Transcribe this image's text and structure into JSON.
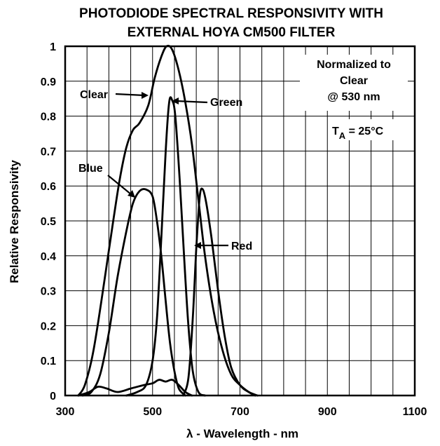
{
  "chart_data": {
    "type": "line",
    "title": [
      "PHOTODIODE SPECTRAL RESPONSIVITY WITH",
      "EXTERNAL HOYA CM500 FILTER"
    ],
    "xlabel": "λ - Wavelength - nm",
    "ylabel": "Relative Responsivity",
    "xlim": [
      300,
      1100
    ],
    "ylim": [
      0,
      1
    ],
    "x_ticks": [
      300,
      500,
      700,
      900,
      1100
    ],
    "y_ticks": [
      0,
      0.1,
      0.2,
      0.3,
      0.4,
      0.5,
      0.6,
      0.7,
      0.8,
      0.9,
      1
    ],
    "y_tick_labels": [
      "0",
      "0.1",
      "0.2",
      "0.3",
      "0.4",
      "0.5",
      "0.6",
      "0.7",
      "0.8",
      "0.9",
      "1"
    ],
    "grid": true,
    "series": [
      {
        "name": "Clear",
        "points": [
          [
            330,
            0
          ],
          [
            345,
            0.03
          ],
          [
            365,
            0.13
          ],
          [
            390,
            0.33
          ],
          [
            410,
            0.5
          ],
          [
            425,
            0.62
          ],
          [
            440,
            0.71
          ],
          [
            455,
            0.76
          ],
          [
            470,
            0.78
          ],
          [
            490,
            0.83
          ],
          [
            505,
            0.91
          ],
          [
            520,
            0.97
          ],
          [
            532,
            1.0
          ],
          [
            545,
            0.99
          ],
          [
            560,
            0.93
          ],
          [
            575,
            0.84
          ],
          [
            590,
            0.72
          ],
          [
            605,
            0.56
          ],
          [
            620,
            0.4
          ],
          [
            640,
            0.24
          ],
          [
            660,
            0.13
          ],
          [
            680,
            0.06
          ],
          [
            700,
            0.03
          ],
          [
            720,
            0.01
          ],
          [
            735,
            0
          ]
        ]
      },
      {
        "name": "Blue",
        "points": [
          [
            340,
            0
          ],
          [
            360,
            0.01
          ],
          [
            380,
            0.06
          ],
          [
            400,
            0.18
          ],
          [
            420,
            0.34
          ],
          [
            440,
            0.47
          ],
          [
            455,
            0.55
          ],
          [
            470,
            0.585
          ],
          [
            485,
            0.59
          ],
          [
            500,
            0.57
          ],
          [
            510,
            0.5
          ],
          [
            520,
            0.4
          ],
          [
            530,
            0.27
          ],
          [
            540,
            0.15
          ],
          [
            550,
            0.07
          ],
          [
            560,
            0.02
          ],
          [
            575,
            0
          ]
        ]
      },
      {
        "name": "Green",
        "points": [
          [
            440,
            0
          ],
          [
            465,
            0.01
          ],
          [
            485,
            0.03
          ],
          [
            500,
            0.1
          ],
          [
            510,
            0.22
          ],
          [
            520,
            0.45
          ],
          [
            530,
            0.7
          ],
          [
            538,
            0.84
          ],
          [
            545,
            0.845
          ],
          [
            552,
            0.8
          ],
          [
            562,
            0.62
          ],
          [
            572,
            0.4
          ],
          [
            582,
            0.2
          ],
          [
            592,
            0.07
          ],
          [
            605,
            0.01
          ],
          [
            620,
            0
          ]
        ]
      },
      {
        "name": "Red",
        "points": [
          [
            570,
            0
          ],
          [
            582,
            0.05
          ],
          [
            592,
            0.22
          ],
          [
            600,
            0.42
          ],
          [
            608,
            0.57
          ],
          [
            615,
            0.59
          ],
          [
            623,
            0.55
          ],
          [
            635,
            0.45
          ],
          [
            650,
            0.3
          ],
          [
            665,
            0.17
          ],
          [
            680,
            0.08
          ],
          [
            700,
            0.03
          ],
          [
            720,
            0.01
          ],
          [
            740,
            0
          ]
        ]
      },
      {
        "name": "",
        "points": [
          [
            330,
            0
          ],
          [
            355,
            0.01
          ],
          [
            375,
            0.025
          ],
          [
            395,
            0.02
          ],
          [
            420,
            0.01
          ],
          [
            450,
            0.02
          ],
          [
            480,
            0.03
          ],
          [
            500,
            0.035
          ],
          [
            515,
            0.045
          ],
          [
            530,
            0.04
          ],
          [
            545,
            0.045
          ],
          [
            560,
            0.03
          ],
          [
            575,
            0.01
          ],
          [
            590,
            0
          ]
        ]
      }
    ],
    "annotations": {
      "clear_label": "Clear",
      "green_label": "Green",
      "blue_label": "Blue",
      "red_label": "Red",
      "normalized_lines": [
        "Normalized to",
        "Clear",
        "@ 530 nm"
      ],
      "temperature": {
        "prefix": "T",
        "subscript": "A",
        "suffix": " = 25°C"
      }
    }
  }
}
